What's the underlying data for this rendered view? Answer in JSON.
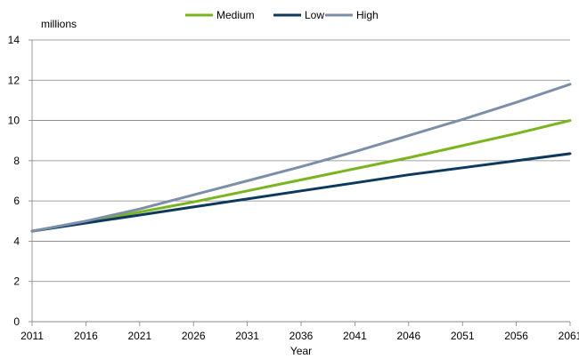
{
  "chart_data": {
    "type": "line",
    "title": "",
    "ylabel": "millions",
    "xlabel": "Year",
    "xlim": [
      2011,
      2061
    ],
    "ylim": [
      0,
      14
    ],
    "x_ticks": [
      2011,
      2016,
      2021,
      2026,
      2031,
      2036,
      2041,
      2046,
      2051,
      2056,
      2061
    ],
    "y_ticks": [
      0,
      2,
      4,
      6,
      8,
      10,
      12,
      14
    ],
    "grid": "horizontal",
    "legend_position": "top",
    "x": [
      2011,
      2016,
      2021,
      2026,
      2031,
      2036,
      2041,
      2046,
      2051,
      2056,
      2061
    ],
    "series": [
      {
        "name": "Medium",
        "color": "#7ab51d",
        "values": [
          4.5,
          4.95,
          5.45,
          5.95,
          6.5,
          7.05,
          7.6,
          8.15,
          8.75,
          9.35,
          10.0
        ]
      },
      {
        "name": "Low",
        "color": "#0d3a5c",
        "values": [
          4.5,
          4.9,
          5.3,
          5.7,
          6.1,
          6.5,
          6.9,
          7.3,
          7.65,
          8.0,
          8.35
        ]
      },
      {
        "name": "High",
        "color": "#7b8fa8",
        "values": [
          4.5,
          5.0,
          5.6,
          6.3,
          7.0,
          7.7,
          8.45,
          9.25,
          10.05,
          10.9,
          11.8
        ]
      }
    ]
  }
}
